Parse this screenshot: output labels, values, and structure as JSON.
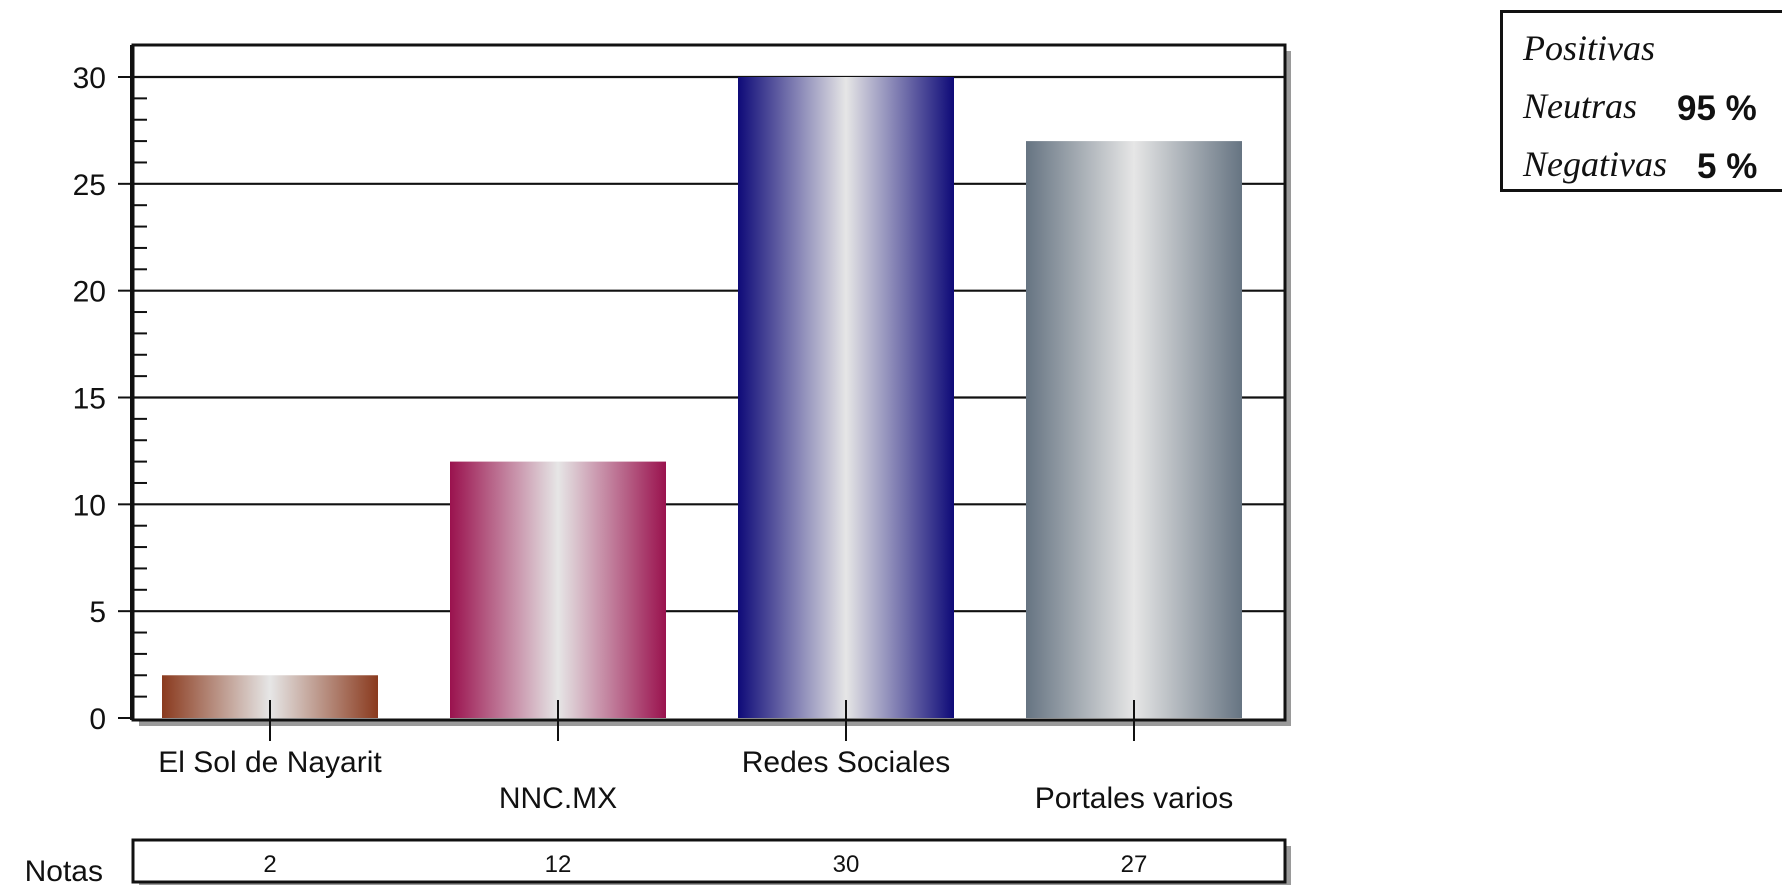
{
  "chart_data": {
    "type": "bar",
    "categories": [
      "El Sol de Nayarit",
      "NNC.MX",
      "Redes Sociales",
      "Portales varios"
    ],
    "values": [
      2,
      12,
      30,
      27
    ],
    "ylim": [
      0,
      30
    ],
    "yticks": [
      0,
      5,
      10,
      15,
      20,
      25,
      30
    ],
    "grid": true,
    "colors": [
      "#8a3a1e",
      "#9a124e",
      "#0e0a78",
      "#667482"
    ],
    "highlight_color": "#e6e6e6",
    "data_table": {
      "row_label": "Notas",
      "values": [
        "2",
        "12",
        "30",
        "27"
      ]
    }
  },
  "sentiment": [
    {
      "label": "Positivas",
      "value": ""
    },
    {
      "label": "Neutras",
      "value": "95 %"
    },
    {
      "label": "Negativas",
      "value": "5 %"
    }
  ]
}
